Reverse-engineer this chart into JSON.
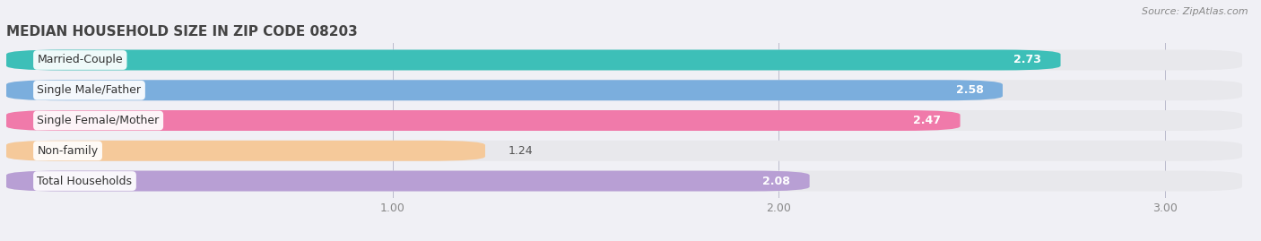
{
  "title": "MEDIAN HOUSEHOLD SIZE IN ZIP CODE 08203",
  "source": "Source: ZipAtlas.com",
  "categories": [
    "Married-Couple",
    "Single Male/Father",
    "Single Female/Mother",
    "Non-family",
    "Total Households"
  ],
  "values": [
    2.73,
    2.58,
    2.47,
    1.24,
    2.08
  ],
  "bar_colors": [
    "#3dbfb8",
    "#7baedd",
    "#f07aaa",
    "#f5c99a",
    "#b89fd4"
  ],
  "bar_bg_color": "#e8e8ec",
  "xlim_data": [
    0,
    3.2
  ],
  "xlim_display": [
    0,
    3.2
  ],
  "xticks": [
    1.0,
    2.0,
    3.0
  ],
  "background_color": "#ffffff",
  "fig_bg_color": "#f0f0f5",
  "title_fontsize": 11,
  "label_fontsize": 9,
  "value_fontsize": 9,
  "tick_fontsize": 9,
  "bar_height": 0.68,
  "bar_gap": 0.32
}
